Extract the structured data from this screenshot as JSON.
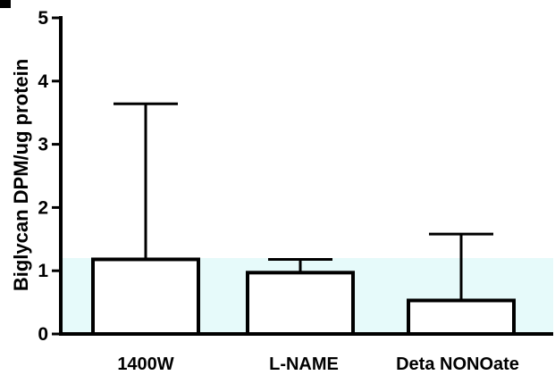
{
  "chart_data": {
    "type": "bar",
    "title": "",
    "xlabel": "",
    "ylabel": "Biglycan DPM/ug protein",
    "categories": [
      "1400W",
      "L-NAME",
      "Deta NONOate"
    ],
    "values": [
      1.18,
      0.97,
      0.53
    ],
    "error_upper": [
      3.64,
      1.18,
      1.58
    ],
    "ylim": [
      0,
      5
    ],
    "yticks": [
      0,
      1,
      2,
      3,
      4,
      5
    ],
    "ytick_labels": [
      "0",
      "1",
      "2",
      "3",
      "4",
      "5"
    ],
    "grid": false,
    "band_range": [
      0,
      1.2
    ],
    "colors": {
      "bar_fill": "#ffffff",
      "bar_stroke": "#000000",
      "band": "#e6fafa",
      "axis": "#000000"
    }
  }
}
